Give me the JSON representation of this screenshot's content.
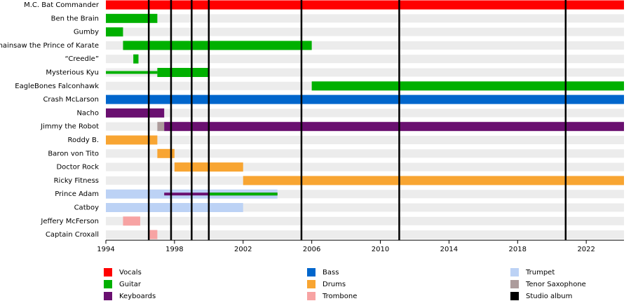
{
  "chart_data": {
    "type": "timeline",
    "xlim": [
      1994,
      2024.2
    ],
    "xticks": [
      1994,
      1998,
      2002,
      2006,
      2010,
      2014,
      2018,
      2022
    ],
    "roles": [
      {
        "name": "Vocals",
        "color": "#ff0000"
      },
      {
        "name": "Guitar",
        "color": "#00b000"
      },
      {
        "name": "Keyboards",
        "color": "#6a1070"
      },
      {
        "name": "Bass",
        "color": "#0066cc"
      },
      {
        "name": "Drums",
        "color": "#f8a532"
      },
      {
        "name": "Trombone",
        "color": "#f7a3a3"
      },
      {
        "name": "Trumpet",
        "color": "#bcd2f5"
      },
      {
        "name": "Tenor Saxophone",
        "color": "#ad9c9c"
      },
      {
        "name": "Studio album",
        "color": "#000000"
      }
    ],
    "albums": [
      1996.5,
      1997.8,
      1999.0,
      2000.0,
      2005.4,
      2011.1,
      2020.8
    ],
    "members": [
      {
        "name": "M.C. Bat Commander",
        "bars": [
          {
            "role": "Vocals",
            "start": 1994,
            "end": 2024.2
          }
        ]
      },
      {
        "name": "Ben the Brain",
        "bars": [
          {
            "role": "Guitar",
            "start": 1994,
            "end": 1997.0
          }
        ]
      },
      {
        "name": "Gumby",
        "bars": [
          {
            "role": "Guitar",
            "start": 1994,
            "end": 1995.0
          }
        ]
      },
      {
        "name": "Chainsaw the Prince of Karate",
        "bars": [
          {
            "role": "Guitar",
            "start": 1995.0,
            "end": 2006.0
          }
        ]
      },
      {
        "name": "“Creedle”",
        "bars": [
          {
            "role": "Guitar",
            "start": 1995.6,
            "end": 1995.9
          }
        ]
      },
      {
        "name": "Mysterious Kyu",
        "bars": [
          {
            "role": "Guitar",
            "start": 1994,
            "end": 1997.0,
            "width": "thin"
          },
          {
            "role": "Guitar",
            "start": 1997.0,
            "end": 2000.0
          }
        ]
      },
      {
        "name": "EagleBones Falconhawk",
        "bars": [
          {
            "role": "Guitar",
            "start": 2006.0,
            "end": 2024.2
          }
        ]
      },
      {
        "name": "Crash McLarson",
        "bars": [
          {
            "role": "Bass",
            "start": 1994,
            "end": 2024.2
          }
        ]
      },
      {
        "name": "Nacho",
        "bars": [
          {
            "role": "Keyboards",
            "start": 1994,
            "end": 1997.4
          }
        ]
      },
      {
        "name": "Jimmy the Robot",
        "bars": [
          {
            "role": "Tenor Saxophone",
            "start": 1997.0,
            "end": 1997.4
          },
          {
            "role": "Keyboards",
            "start": 1997.4,
            "end": 2024.2
          }
        ]
      },
      {
        "name": "Roddy B.",
        "bars": [
          {
            "role": "Drums",
            "start": 1994,
            "end": 1997.0
          }
        ]
      },
      {
        "name": "Baron von Tito",
        "bars": [
          {
            "role": "Drums",
            "start": 1997.0,
            "end": 1998.0
          }
        ]
      },
      {
        "name": "Doctor Rock",
        "bars": [
          {
            "role": "Drums",
            "start": 1998.0,
            "end": 2002.0
          }
        ]
      },
      {
        "name": "Ricky Fitness",
        "bars": [
          {
            "role": "Drums",
            "start": 2002.0,
            "end": 2024.2
          }
        ]
      },
      {
        "name": "Prince Adam",
        "bars": [
          {
            "role": "Trumpet",
            "start": 1994,
            "end": 2004.0
          },
          {
            "role": "Keyboards",
            "start": 1997.4,
            "end": 2004.0,
            "width": "thin"
          },
          {
            "role": "Guitar",
            "start": 2000.0,
            "end": 2004.0,
            "width": "thin"
          }
        ]
      },
      {
        "name": "Catboy",
        "bars": [
          {
            "role": "Trumpet",
            "start": 1994,
            "end": 2002.0
          }
        ]
      },
      {
        "name": "Jeffery McFerson",
        "bars": [
          {
            "role": "Trombone",
            "start": 1995.0,
            "end": 1996.0
          }
        ]
      },
      {
        "name": "Captain Croxall",
        "bars": [
          {
            "role": "Trombone",
            "start": 1996.5,
            "end": 1997.0
          }
        ]
      }
    ]
  }
}
